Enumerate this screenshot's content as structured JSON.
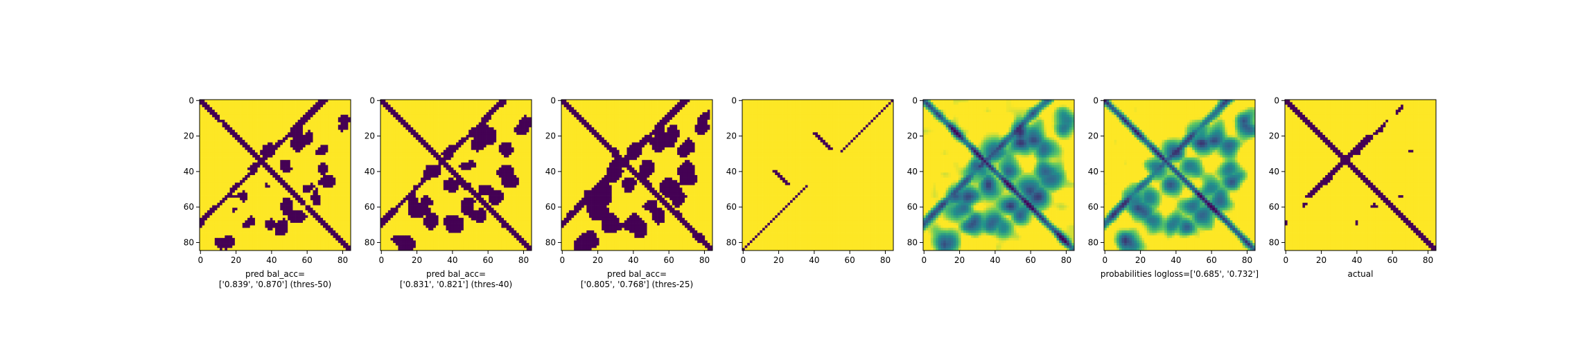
{
  "chart_data": [
    {
      "type": "heatmap",
      "title": "",
      "xlabel": "pred bal_acc=\n['0.839', '0.870'] (thres-50)",
      "ylabel": "",
      "xticks": [
        0,
        20,
        40,
        60,
        80
      ],
      "yticks": [
        0,
        20,
        40,
        60,
        80
      ],
      "xlim": [
        0,
        85
      ],
      "ylim": [
        85,
        0
      ],
      "colormap": "viridis",
      "binary": true,
      "pattern": "diag_cross_blobs"
    },
    {
      "type": "heatmap",
      "title": "",
      "xlabel": "pred bal_acc=\n['0.831', '0.821'] (thres-40)",
      "ylabel": "",
      "xticks": [
        0,
        20,
        40,
        60,
        80
      ],
      "yticks": [
        0,
        20,
        40,
        60,
        80
      ],
      "xlim": [
        0,
        85
      ],
      "ylim": [
        85,
        0
      ],
      "colormap": "viridis",
      "binary": true,
      "pattern": "diag_cross_blobs_more"
    },
    {
      "type": "heatmap",
      "title": "",
      "xlabel": "pred bal_acc=\n['0.805', '0.768'] (thres-25)",
      "ylabel": "",
      "xticks": [
        0,
        20,
        40,
        60,
        80
      ],
      "yticks": [
        0,
        20,
        40,
        60,
        80
      ],
      "xlim": [
        0,
        85
      ],
      "ylim": [
        85,
        0
      ],
      "colormap": "viridis",
      "binary": true,
      "pattern": "diag_cross_blobs_most"
    },
    {
      "type": "heatmap",
      "title": "",
      "xlabel": "",
      "ylabel": "",
      "xticks": [
        0,
        20,
        40,
        60,
        80
      ],
      "yticks": [
        0,
        20,
        40,
        60,
        80
      ],
      "xlim": [
        0,
        85
      ],
      "ylim": [
        85,
        0
      ],
      "colormap": "viridis",
      "binary": true,
      "pattern": "sparse_diagonals"
    },
    {
      "type": "heatmap",
      "title": "",
      "xlabel": "",
      "ylabel": "",
      "xticks": [
        0,
        20,
        40,
        60,
        80
      ],
      "yticks": [
        0,
        20,
        40,
        60,
        80
      ],
      "xlim": [
        0,
        85
      ],
      "ylim": [
        85,
        0
      ],
      "colormap": "viridis",
      "binary": false,
      "pattern": "continuous_low_diag"
    },
    {
      "type": "heatmap",
      "title": "",
      "xlabel": "probabilities logloss=['0.685', '0.732']",
      "ylabel": "",
      "xticks": [
        0,
        20,
        40,
        60,
        80
      ],
      "yticks": [
        0,
        20,
        40,
        60,
        80
      ],
      "xlim": [
        0,
        85
      ],
      "ylim": [
        85,
        0
      ],
      "colormap": "viridis",
      "binary": false,
      "pattern": "continuous_probabilities"
    },
    {
      "type": "heatmap",
      "title": "",
      "xlabel": "actual",
      "ylabel": "",
      "xticks": [
        0,
        20,
        40,
        60,
        80
      ],
      "yticks": [
        0,
        20,
        40,
        60,
        80
      ],
      "xlim": [
        0,
        85
      ],
      "ylim": [
        85,
        0
      ],
      "colormap": "viridis",
      "binary": true,
      "pattern": "actual_contacts"
    }
  ],
  "colors": {
    "low": "#440154",
    "mid_low": "#31688e",
    "mid": "#21918c",
    "mid_high": "#5ec962",
    "high": "#fde725"
  }
}
